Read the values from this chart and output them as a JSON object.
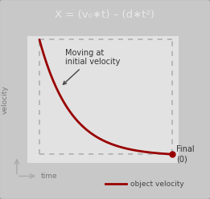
{
  "title": "X = (v₀∗t) – (d∗t²)",
  "title_bg_top": "#7a7a7a",
  "title_bg_bot": "#5a5a5a",
  "title_color": "#e8e8e8",
  "bg_color": "#c8c8c8",
  "plot_bg": "#e2e2e2",
  "curve_color": "#990000",
  "dot_color": "#990000",
  "annotation_text": "Moving at\ninitial velocity",
  "final_label": "Final\n(0)",
  "xlabel": "time",
  "ylabel": "velocity",
  "legend_label": "object velocity",
  "dashed_color": "#aaaaaa",
  "axis_color": "#aaaaaa"
}
